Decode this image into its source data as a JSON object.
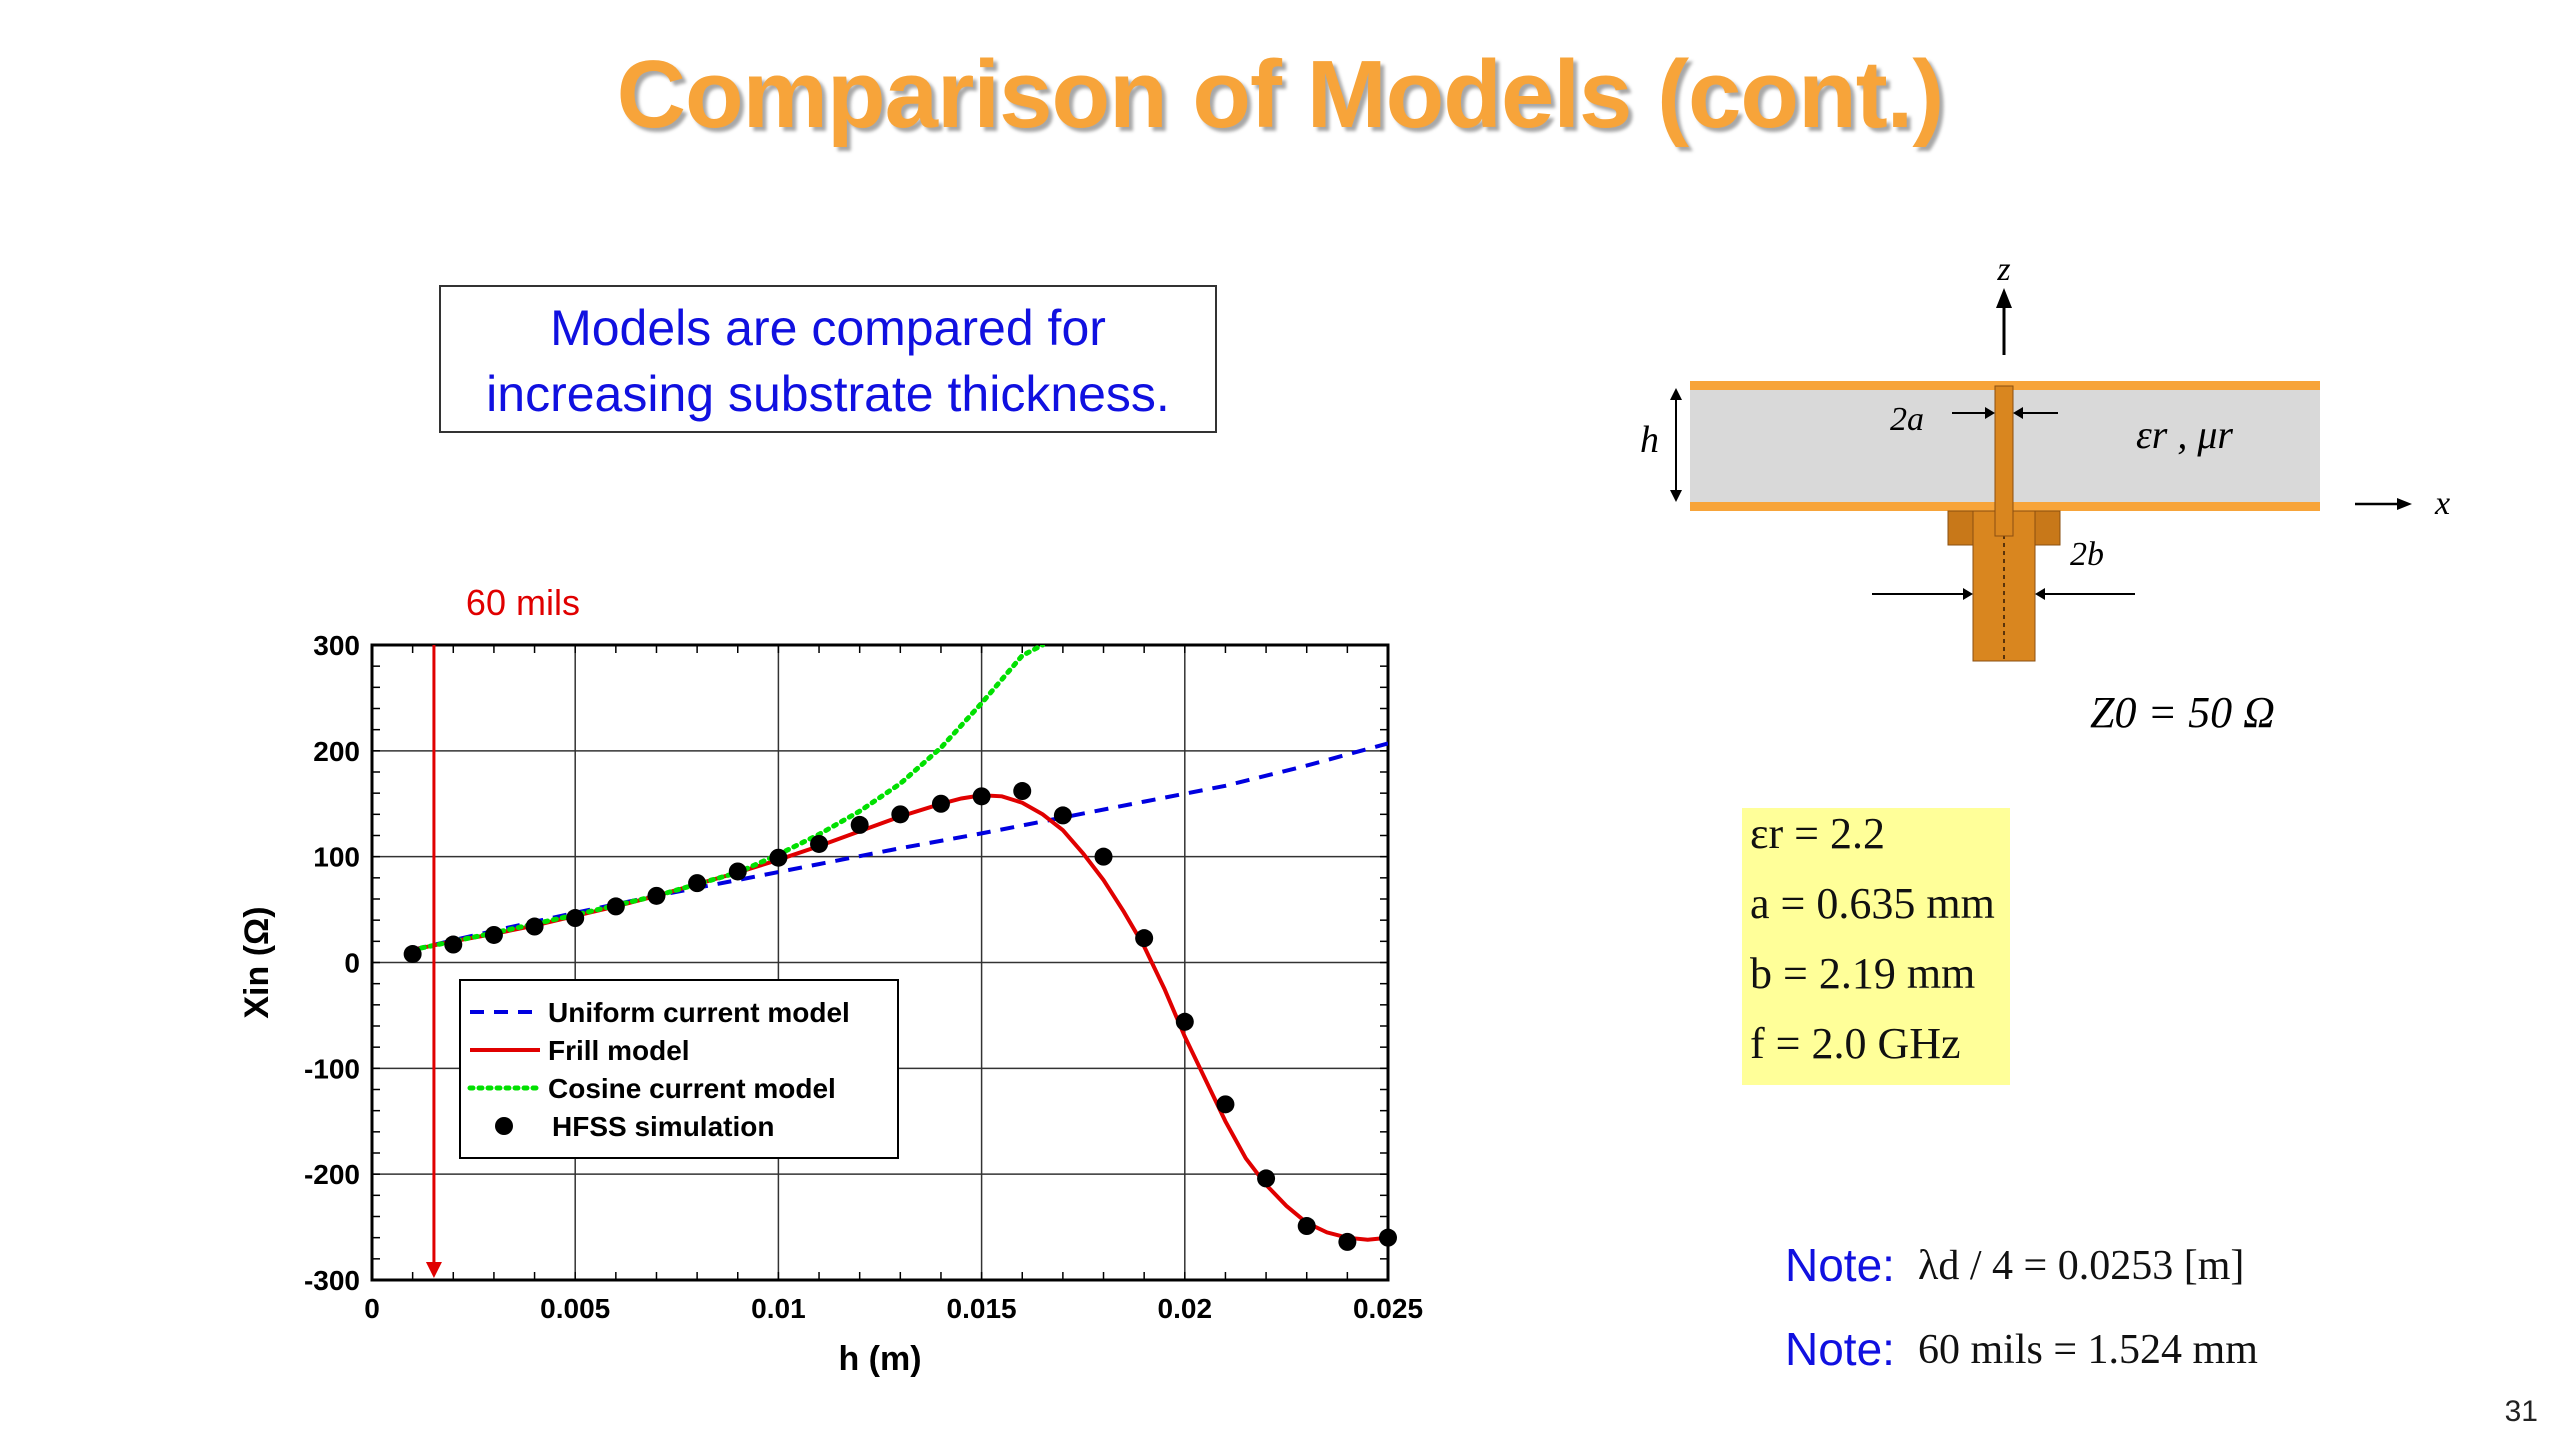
{
  "slide": {
    "title": "Comparison of Models (cont.)",
    "callout_line1": "Models are compared for",
    "callout_line2": "increasing substrate thickness.",
    "page_number": "31"
  },
  "diagram": {
    "z_label": "z",
    "x_label": "x",
    "h_label": "h",
    "a_label": "2a",
    "b_label": "2b",
    "material_label": "εr , μr",
    "z0_label": "Z0 = 50 Ω",
    "colors": {
      "conductor": "#F7A43A",
      "substrate": "#d9d9d9",
      "probe": "#d9861f"
    }
  },
  "params": [
    "εr = 2.2",
    "a = 0.635 mm",
    "b = 2.19  mm",
    "f  = 2.0 GHz"
  ],
  "notes": [
    {
      "label": "Note:",
      "value": "λd / 4 = 0.0253 [m]"
    },
    {
      "label": "Note:",
      "value": "60 mils = 1.524 mm"
    }
  ],
  "chart_data": {
    "type": "line",
    "xlabel": "h (m)",
    "ylabel": "Xin (Ω)",
    "xlim": [
      0,
      0.025
    ],
    "ylim": [
      -300,
      300
    ],
    "xticks": [
      0,
      0.005,
      0.01,
      0.015,
      0.02,
      0.025
    ],
    "xtick_labels": [
      "0",
      "0.005",
      "0.01",
      "0.015",
      "0.02",
      "0.025"
    ],
    "yticks": [
      -300,
      -200,
      -100,
      0,
      100,
      200,
      300
    ],
    "ytick_labels": [
      "-300",
      "-200",
      "-100",
      "0",
      "100",
      "200",
      "300"
    ],
    "grid": true,
    "legend_position": "lower-left",
    "marker_annotation": {
      "label": "60 mils",
      "x": 0.001524,
      "color": "#e00000"
    },
    "series": [
      {
        "name": "Uniform current model",
        "style": "dashed",
        "color": "#0000e0",
        "x": [
          0.001,
          0.003,
          0.005,
          0.007,
          0.009,
          0.011,
          0.013,
          0.015,
          0.017,
          0.019,
          0.021,
          0.023,
          0.025
        ],
        "y": [
          12,
          30,
          47,
          63,
          78,
          93,
          108,
          122,
          137,
          152,
          167,
          186,
          207
        ]
      },
      {
        "name": "Frill model",
        "style": "solid",
        "color": "#e00000",
        "x": [
          0.001,
          0.002,
          0.003,
          0.004,
          0.005,
          0.006,
          0.007,
          0.008,
          0.009,
          0.01,
          0.011,
          0.012,
          0.013,
          0.014,
          0.0145,
          0.015,
          0.0155,
          0.016,
          0.0165,
          0.017,
          0.0175,
          0.018,
          0.0185,
          0.019,
          0.0195,
          0.02,
          0.0205,
          0.021,
          0.0215,
          0.022,
          0.0225,
          0.023,
          0.0235,
          0.024,
          0.0245,
          0.025
        ],
        "y": [
          12,
          20,
          27,
          35,
          44,
          53,
          63,
          74,
          85,
          97,
          110,
          124,
          138,
          150,
          155,
          158,
          157,
          151,
          140,
          125,
          103,
          78,
          48,
          15,
          -25,
          -70,
          -110,
          -150,
          -185,
          -210,
          -230,
          -246,
          -255,
          -260,
          -262,
          -260
        ]
      },
      {
        "name": "Cosine current  model",
        "style": "dotted",
        "color": "#00e000",
        "x": [
          0.001,
          0.003,
          0.005,
          0.007,
          0.009,
          0.01,
          0.011,
          0.012,
          0.013,
          0.014,
          0.015,
          0.016,
          0.0165
        ],
        "y": [
          12,
          28,
          45,
          63,
          85,
          102,
          121,
          143,
          169,
          203,
          245,
          290,
          300
        ]
      },
      {
        "name": "HFSS simulation",
        "style": "markers",
        "color": "#000000",
        "x": [
          0.001,
          0.002,
          0.003,
          0.004,
          0.005,
          0.006,
          0.007,
          0.008,
          0.009,
          0.01,
          0.011,
          0.012,
          0.013,
          0.014,
          0.015,
          0.016,
          0.017,
          0.018,
          0.019,
          0.02,
          0.021,
          0.022,
          0.023,
          0.024,
          0.025
        ],
        "y": [
          8,
          17,
          26,
          34,
          42,
          53,
          63,
          75,
          86,
          99,
          112,
          130,
          140,
          150,
          157,
          162,
          139,
          100,
          23,
          -56,
          -134,
          -204,
          -249,
          -264,
          -260
        ]
      }
    ]
  }
}
